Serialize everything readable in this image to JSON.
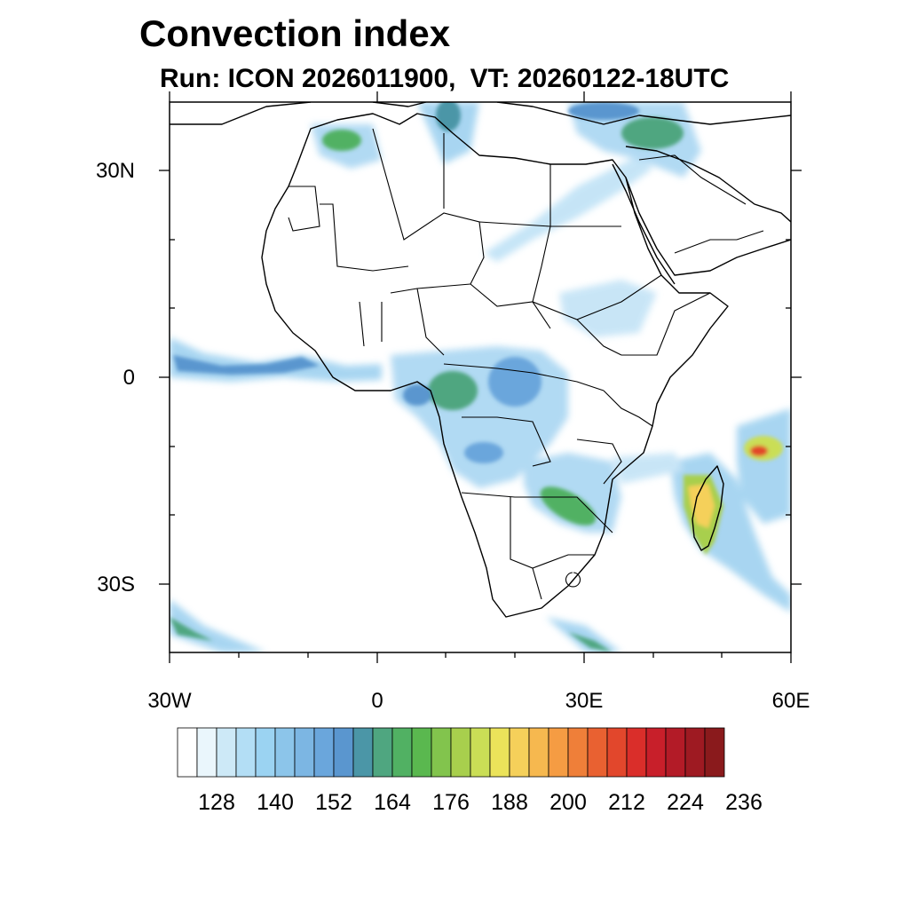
{
  "title": "Convection index",
  "subtitle": {
    "run": "Run: ICON 2026011900,",
    "vt": "VT: 20260122-18UTC"
  },
  "map": {
    "lon_range": [
      -30,
      60
    ],
    "lat_range": [
      -40,
      40
    ],
    "lat_tick_labels": [
      "30N",
      "0",
      "30S"
    ],
    "lon_tick_labels": [
      "30W",
      "0",
      "30E",
      "60E"
    ]
  },
  "colorbar": {
    "colors": [
      "#ffffff",
      "#eaf6fc",
      "#cde9f7",
      "#b3def5",
      "#9bd3f2",
      "#8cc5ea",
      "#7cb6e3",
      "#6aa6dc",
      "#5a96cf",
      "#4b96a7",
      "#4fa680",
      "#51b163",
      "#5ab84f",
      "#82c44d",
      "#a8cf4d",
      "#cade56",
      "#ebe35a",
      "#f5d05a",
      "#f6b84f",
      "#f59c43",
      "#ef7f39",
      "#e96131",
      "#e2472c",
      "#da2e2a",
      "#c81f2a",
      "#b31b27",
      "#9e1a22",
      "#8a1a1c"
    ],
    "labels": [
      "128",
      "140",
      "152",
      "164",
      "176",
      "188",
      "200",
      "212",
      "224",
      "236"
    ]
  }
}
